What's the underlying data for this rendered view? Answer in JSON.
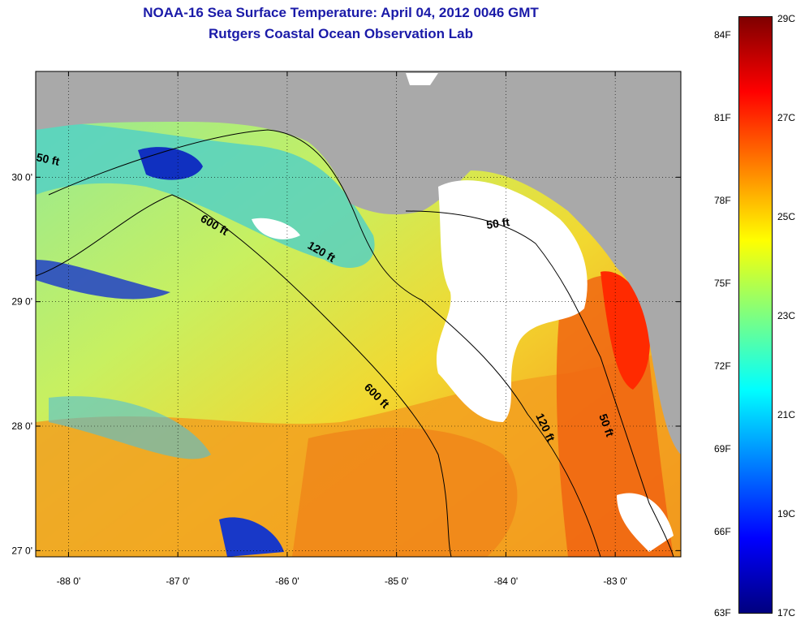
{
  "title": "NOAA-16 Sea Surface Temperature:  April 04, 2012 0046 GMT",
  "subtitle": "Rutgers Coastal Ocean Observation Lab",
  "map": {
    "lon_range": [
      -88.3,
      -82.4
    ],
    "lat_range": [
      26.95,
      30.85
    ],
    "lon_ticks": [
      {
        "value": -88,
        "label": "-88 0'"
      },
      {
        "value": -87,
        "label": "-87 0'"
      },
      {
        "value": -86,
        "label": "-86 0'"
      },
      {
        "value": -85,
        "label": "-85 0'"
      },
      {
        "value": -84,
        "label": "-84 0'"
      },
      {
        "value": -83,
        "label": "-83 0'"
      }
    ],
    "lat_ticks": [
      {
        "value": 30,
        "label": "30 0'"
      },
      {
        "value": 29,
        "label": "29 0'"
      },
      {
        "value": 28,
        "label": "28 0'"
      },
      {
        "value": 27,
        "label": "27 0'"
      }
    ],
    "contour_labels": [
      "50 ft",
      "600 ft",
      "120 ft",
      "50 ft",
      "600 ft",
      "120 ft",
      "50 ft"
    ],
    "land_color": "#a9a9a9",
    "cloud_color": "#ffffff"
  },
  "colorbar": {
    "c_labels": [
      "29C",
      "27C",
      "25C",
      "23C",
      "21C",
      "19C",
      "17C"
    ],
    "f_labels": [
      "84F",
      "81F",
      "78F",
      "75F",
      "72F",
      "69F",
      "66F",
      "63F"
    ],
    "colors": [
      "#00007f",
      "#0000ff",
      "#007fff",
      "#00ffff",
      "#7fff7f",
      "#ffff00",
      "#ff7f00",
      "#ff0000",
      "#7f0000"
    ]
  }
}
